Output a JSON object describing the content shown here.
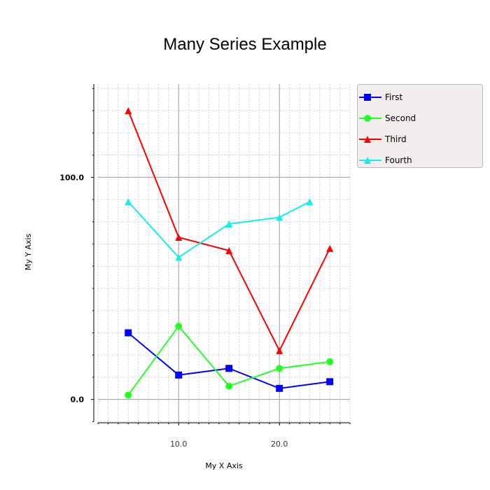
{
  "chart_data": {
    "type": "line",
    "title": "Many Series Example",
    "xlabel": "My X Axis",
    "ylabel": "My Y Axis",
    "xlim": [
      2.0,
      27.0
    ],
    "ylim": [
      -10.5,
      142.0
    ],
    "x_ticks": [
      10,
      20
    ],
    "x_tick_labels": [
      "10.0",
      "20.0"
    ],
    "y_ticks": [
      0,
      100
    ],
    "y_tick_labels": [
      "0.0",
      "100.0"
    ],
    "grid": true,
    "legend_position": "right",
    "series": [
      {
        "name": "First",
        "color": "#0000ff",
        "marker": "square",
        "x": [
          5,
          10,
          15,
          20,
          25
        ],
        "y": [
          30,
          11,
          14,
          5,
          8
        ]
      },
      {
        "name": "Second",
        "color": "#22ff22",
        "marker": "circle",
        "x": [
          5,
          10,
          15,
          20,
          25
        ],
        "y": [
          2,
          33,
          6,
          14,
          17
        ]
      },
      {
        "name": "Third",
        "color": "#ff0000",
        "marker": "triangle",
        "x": [
          5,
          10,
          15,
          20,
          25
        ],
        "y": [
          130,
          73,
          67,
          22,
          68
        ]
      },
      {
        "name": "Fourth",
        "color": "#11eeee",
        "marker": "triangle",
        "x": [
          5,
          10,
          15,
          20,
          23
        ],
        "y": [
          89,
          64,
          79,
          82,
          89
        ]
      }
    ]
  }
}
